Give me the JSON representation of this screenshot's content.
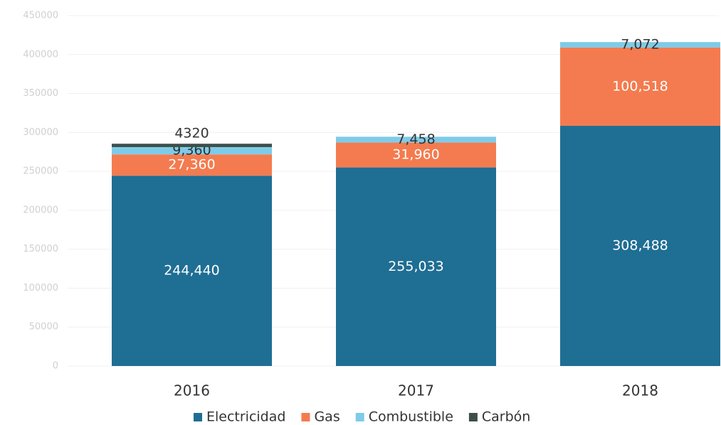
{
  "chart_data": {
    "type": "stacked_bar",
    "categories": [
      "2016",
      "2017",
      "2018"
    ],
    "series": [
      {
        "name": "Electricidad",
        "color": "#1f6e93",
        "values": [
          244440,
          255033,
          308488
        ],
        "value_labels": [
          "244,440",
          "255,033",
          "308,488"
        ]
      },
      {
        "name": "Gas",
        "color": "#f47b4f",
        "values": [
          27360,
          31960,
          100518
        ],
        "value_labels": [
          "27,360",
          "31,960",
          "100,518"
        ]
      },
      {
        "name": "Combustible",
        "color": "#7ecbe8",
        "values": [
          9360,
          7458,
          7072
        ],
        "value_labels": [
          "9,360",
          "7,458",
          "7,072"
        ]
      },
      {
        "name": "Carbón",
        "color": "#3d4f4a",
        "values": [
          4320,
          null,
          null
        ],
        "value_labels": [
          "4320",
          null,
          null
        ]
      }
    ],
    "ylim": [
      0,
      450000
    ],
    "yticks": [
      0,
      50000,
      100000,
      150000,
      200000,
      250000,
      300000,
      350000,
      400000,
      450000
    ],
    "grid": true,
    "legend": "bottom"
  }
}
